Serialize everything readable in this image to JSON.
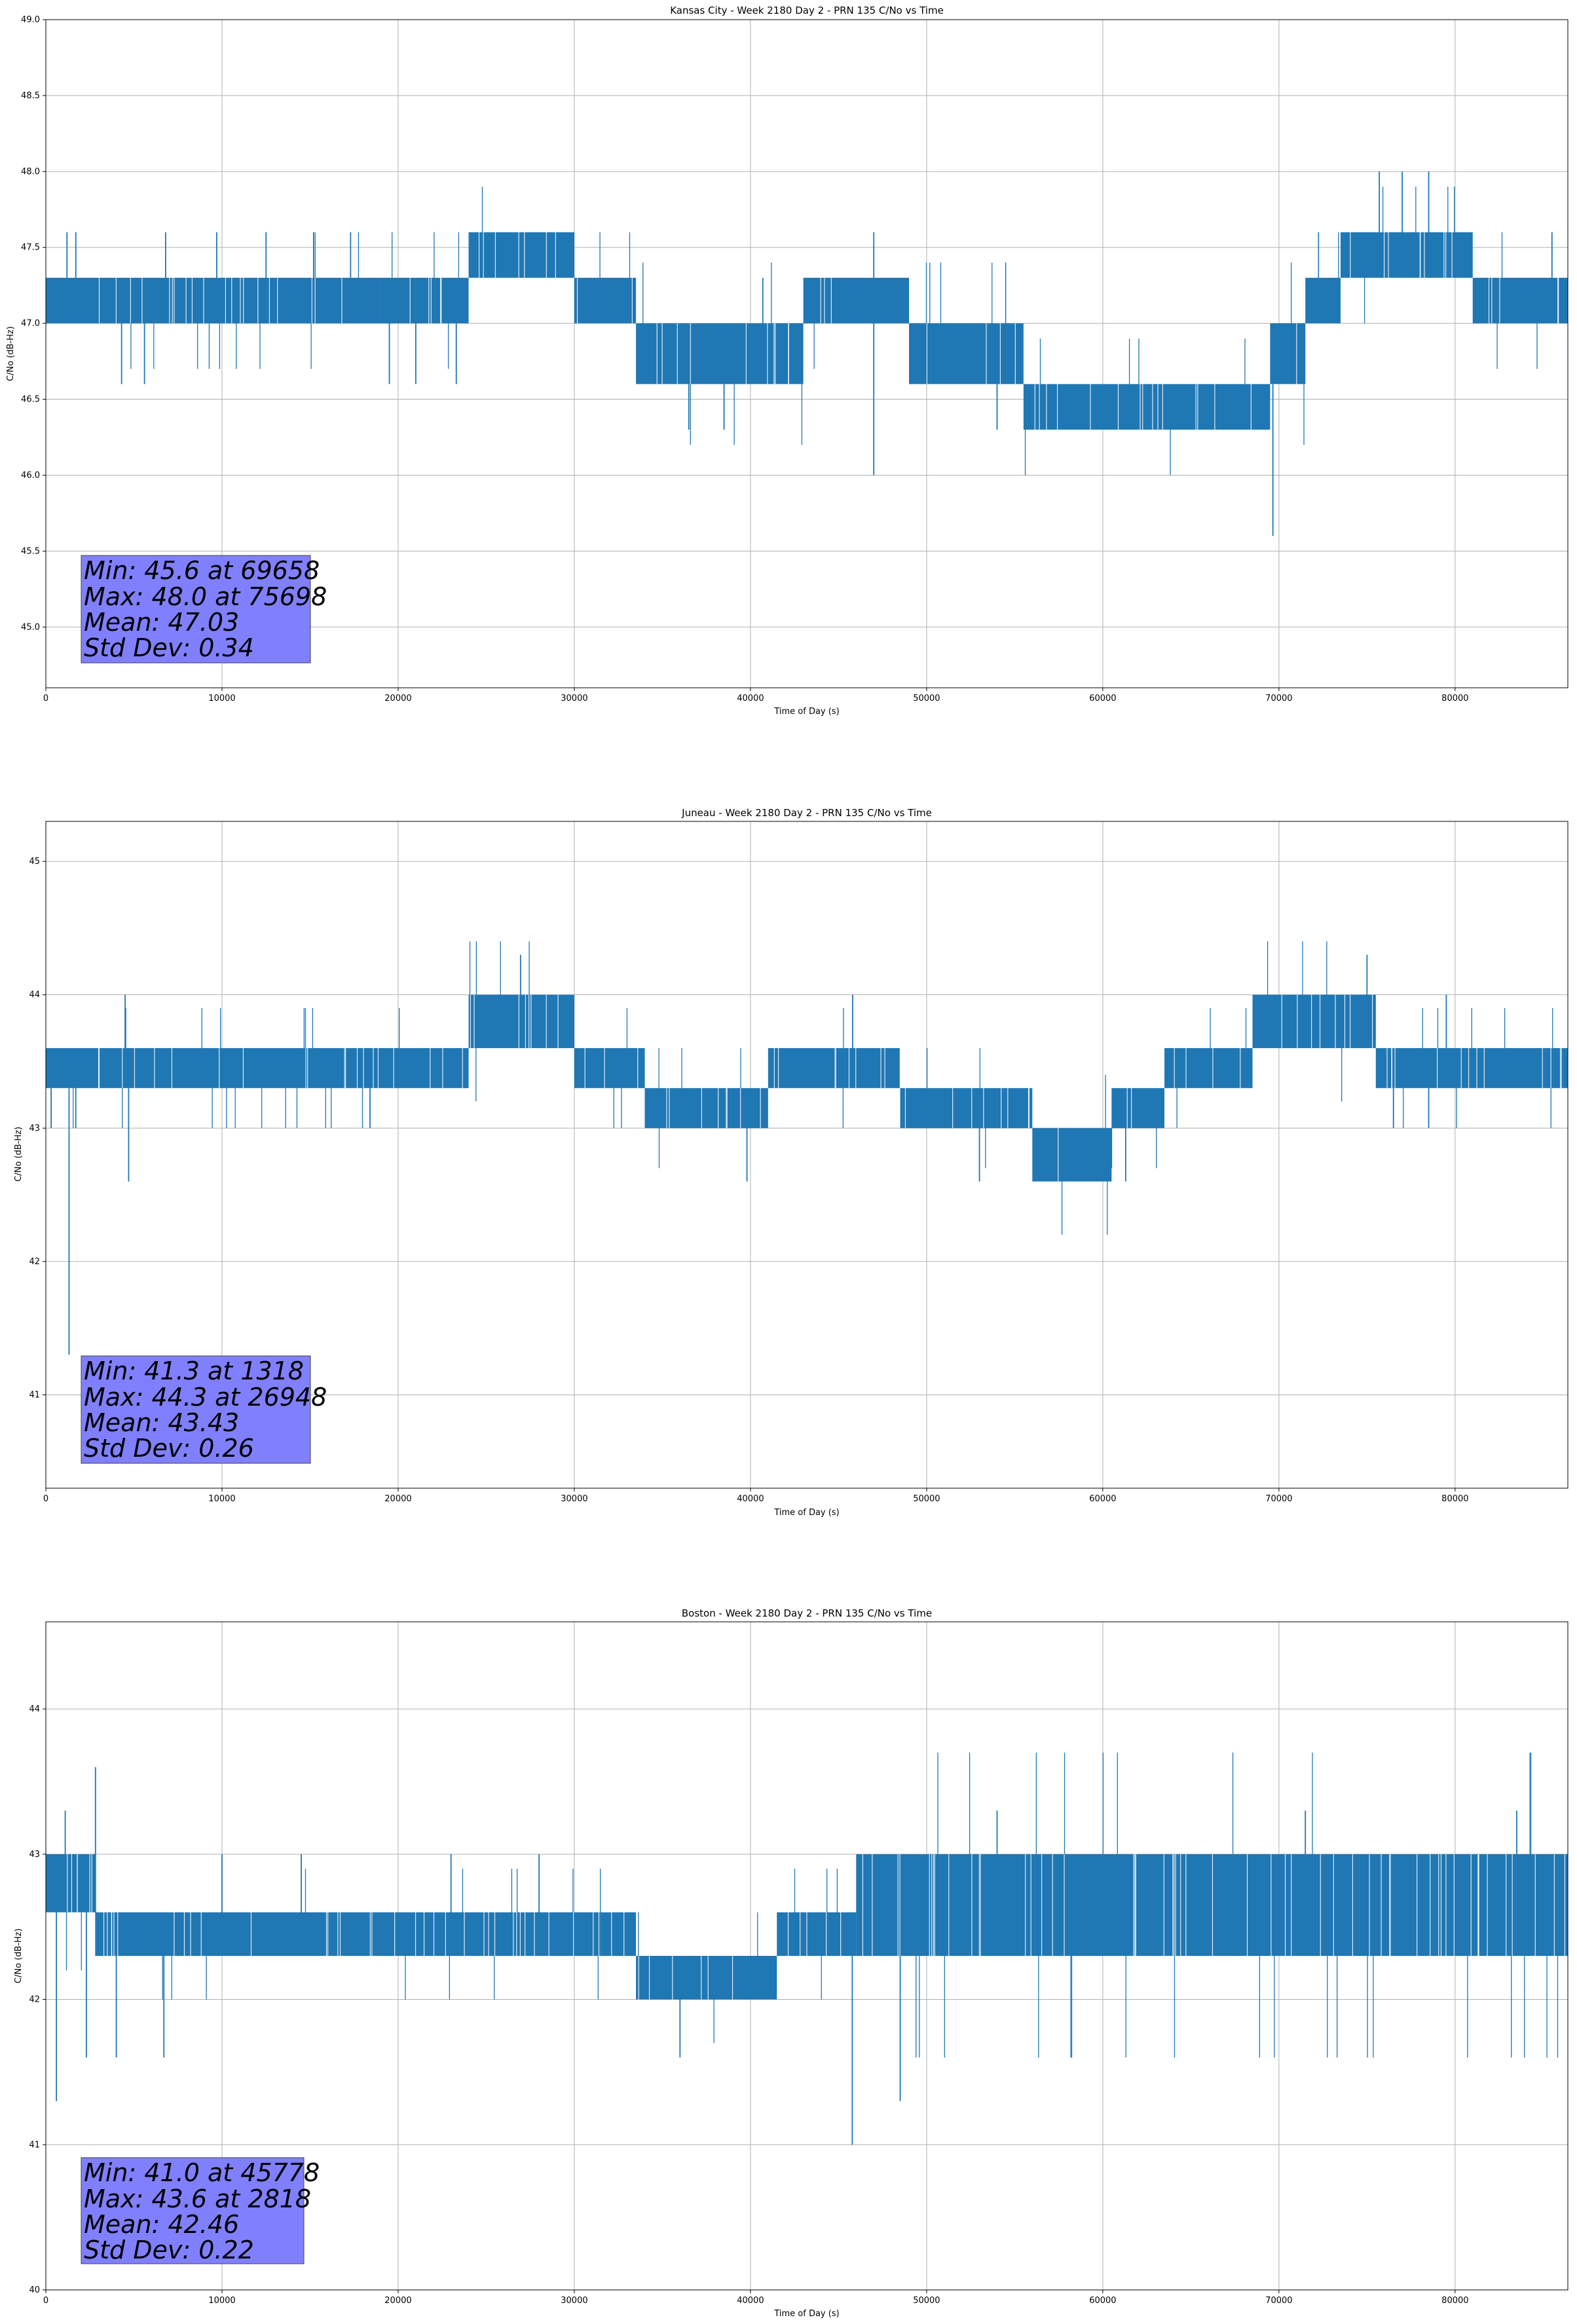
{
  "chart_data": [
    {
      "type": "line",
      "title": "Kansas City - Week 2180 Day 2 - PRN 135 C/No vs Time",
      "xlabel": "Time of Day (s)",
      "ylabel": "C/No (dB-Hz)",
      "xlim": [
        0,
        86400
      ],
      "ylim": [
        44.6,
        49.0
      ],
      "xticks": [
        0,
        10000,
        20000,
        30000,
        40000,
        50000,
        60000,
        70000,
        80000
      ],
      "xtick_labels": [
        "0",
        "10000",
        "20000",
        "30000",
        "40000",
        "50000",
        "60000",
        "70000",
        "80000"
      ],
      "yticks": [
        45.0,
        45.5,
        46.0,
        46.5,
        47.0,
        47.5,
        48.0,
        48.5,
        49.0
      ],
      "ytick_labels": [
        "45.0",
        "45.5",
        "46.0",
        "46.5",
        "47.0",
        "47.5",
        "48.0",
        "48.5",
        "49.0"
      ],
      "grid": true,
      "color": "#1f77b4",
      "stats_box_color": "#8080ff",
      "stats": [
        "Min: 45.6 at 69658",
        "Max: 48.0 at 75698",
        "Mean: 47.03",
        "Std Dev: 0.34"
      ],
      "band_series": [
        {
          "x_start": 0,
          "x_end": 19000,
          "low": 47.0,
          "high": 47.3
        },
        {
          "x_start": 19000,
          "x_end": 24000,
          "low": 47.0,
          "high": 47.3
        },
        {
          "x_start": 24000,
          "x_end": 30000,
          "low": 47.3,
          "high": 47.6
        },
        {
          "x_start": 30000,
          "x_end": 33500,
          "low": 47.0,
          "high": 47.3
        },
        {
          "x_start": 33500,
          "x_end": 43000,
          "low": 46.6,
          "high": 47.0
        },
        {
          "x_start": 43000,
          "x_end": 49000,
          "low": 47.0,
          "high": 47.3
        },
        {
          "x_start": 49000,
          "x_end": 55500,
          "low": 46.6,
          "high": 47.0
        },
        {
          "x_start": 55500,
          "x_end": 69500,
          "low": 46.3,
          "high": 46.6
        },
        {
          "x_start": 69500,
          "x_end": 71500,
          "low": 46.6,
          "high": 47.0
        },
        {
          "x_start": 71500,
          "x_end": 73500,
          "low": 47.0,
          "high": 47.3
        },
        {
          "x_start": 73500,
          "x_end": 81000,
          "low": 47.3,
          "high": 47.6
        },
        {
          "x_start": 81000,
          "x_end": 86400,
          "low": 47.0,
          "high": 47.3
        }
      ],
      "spikes": [
        {
          "x": 1200,
          "y": 47.6
        },
        {
          "x": 1700,
          "y": 47.6
        },
        {
          "x": 4300,
          "y": 46.6
        },
        {
          "x": 5600,
          "y": 46.6
        },
        {
          "x": 6800,
          "y": 47.6
        },
        {
          "x": 9700,
          "y": 47.6
        },
        {
          "x": 12500,
          "y": 47.6
        },
        {
          "x": 15200,
          "y": 47.6
        },
        {
          "x": 17300,
          "y": 47.6
        },
        {
          "x": 19500,
          "y": 46.6
        },
        {
          "x": 21000,
          "y": 46.6
        },
        {
          "x": 23300,
          "y": 46.6
        },
        {
          "x": 36500,
          "y": 46.3
        },
        {
          "x": 38500,
          "y": 46.3
        },
        {
          "x": 40700,
          "y": 47.3
        },
        {
          "x": 47000,
          "y": 47.6
        },
        {
          "x": 47000,
          "y": 46.0
        },
        {
          "x": 54000,
          "y": 46.3
        },
        {
          "x": 69658,
          "y": 45.6
        },
        {
          "x": 75698,
          "y": 48.0
        },
        {
          "x": 77000,
          "y": 48.0
        },
        {
          "x": 78500,
          "y": 48.0
        },
        {
          "x": 85500,
          "y": 47.6
        }
      ]
    },
    {
      "type": "line",
      "title": "Juneau - Week 2180 Day 2 - PRN 135 C/No vs Time",
      "xlabel": "Time of Day (s)",
      "ylabel": "C/No (dB-Hz)",
      "xlim": [
        0,
        86400
      ],
      "ylim": [
        40.3,
        45.3
      ],
      "xticks": [
        0,
        10000,
        20000,
        30000,
        40000,
        50000,
        60000,
        70000,
        80000
      ],
      "xtick_labels": [
        "0",
        "10000",
        "20000",
        "30000",
        "40000",
        "50000",
        "60000",
        "70000",
        "80000"
      ],
      "yticks": [
        41,
        42,
        43,
        44,
        45
      ],
      "ytick_labels": [
        "41",
        "42",
        "43",
        "44",
        "45"
      ],
      "grid": true,
      "color": "#1f77b4",
      "stats_box_color": "#8080ff",
      "stats": [
        "Min: 41.3 at 1318",
        "Max: 44.3 at 26948",
        "Mean: 43.43",
        "Std Dev: 0.26"
      ],
      "band_series": [
        {
          "x_start": 0,
          "x_end": 4500,
          "low": 43.3,
          "high": 43.6
        },
        {
          "x_start": 4500,
          "x_end": 24000,
          "low": 43.3,
          "high": 43.6
        },
        {
          "x_start": 24000,
          "x_end": 30000,
          "low": 43.6,
          "high": 44.0
        },
        {
          "x_start": 30000,
          "x_end": 34000,
          "low": 43.3,
          "high": 43.6
        },
        {
          "x_start": 34000,
          "x_end": 41000,
          "low": 43.0,
          "high": 43.3
        },
        {
          "x_start": 41000,
          "x_end": 48500,
          "low": 43.3,
          "high": 43.6
        },
        {
          "x_start": 48500,
          "x_end": 56000,
          "low": 43.0,
          "high": 43.3
        },
        {
          "x_start": 56000,
          "x_end": 60500,
          "low": 42.6,
          "high": 43.0
        },
        {
          "x_start": 60500,
          "x_end": 63500,
          "low": 43.0,
          "high": 43.3
        },
        {
          "x_start": 63500,
          "x_end": 68500,
          "low": 43.3,
          "high": 43.6
        },
        {
          "x_start": 68500,
          "x_end": 75500,
          "low": 43.6,
          "high": 44.0
        },
        {
          "x_start": 75500,
          "x_end": 86400,
          "low": 43.3,
          "high": 43.6
        }
      ],
      "spikes": [
        {
          "x": 300,
          "y": 43.0
        },
        {
          "x": 1318,
          "y": 41.3
        },
        {
          "x": 1700,
          "y": 43.0
        },
        {
          "x": 4700,
          "y": 42.6
        },
        {
          "x": 4500,
          "y": 44.0
        },
        {
          "x": 18400,
          "y": 43.0
        },
        {
          "x": 26948,
          "y": 44.3
        },
        {
          "x": 39800,
          "y": 42.6
        },
        {
          "x": 45800,
          "y": 44.0
        },
        {
          "x": 53000,
          "y": 42.6
        },
        {
          "x": 61300,
          "y": 42.6
        },
        {
          "x": 75000,
          "y": 44.3
        },
        {
          "x": 76500,
          "y": 43.0
        },
        {
          "x": 78500,
          "y": 43.0
        },
        {
          "x": 79500,
          "y": 44.0
        }
      ]
    },
    {
      "type": "line",
      "title": "Boston - Week 2180 Day 2 - PRN 135 C/No vs Time",
      "xlabel": "Time of Day (s)",
      "ylabel": "C/No (dB-Hz)",
      "xlim": [
        0,
        86400
      ],
      "ylim": [
        40.0,
        44.6
      ],
      "xticks": [
        0,
        10000,
        20000,
        30000,
        40000,
        50000,
        60000,
        70000,
        80000
      ],
      "xtick_labels": [
        "0",
        "10000",
        "20000",
        "30000",
        "40000",
        "50000",
        "60000",
        "70000",
        "80000"
      ],
      "yticks": [
        40,
        41,
        42,
        43,
        44
      ],
      "ytick_labels": [
        "40",
        "41",
        "42",
        "43",
        "44"
      ],
      "grid": true,
      "color": "#1f77b4",
      "stats_box_color": "#8080ff",
      "stats": [
        "Min: 41.0 at 45778",
        "Max: 43.6 at 2818",
        "Mean: 42.46",
        "Std Dev: 0.22"
      ],
      "band_series": [
        {
          "x_start": 0,
          "x_end": 2800,
          "low": 42.6,
          "high": 43.0
        },
        {
          "x_start": 2800,
          "x_end": 31500,
          "low": 42.3,
          "high": 42.6
        },
        {
          "x_start": 31500,
          "x_end": 33500,
          "low": 42.3,
          "high": 42.6
        },
        {
          "x_start": 33500,
          "x_end": 41500,
          "low": 42.0,
          "high": 42.3
        },
        {
          "x_start": 41500,
          "x_end": 46000,
          "low": 42.3,
          "high": 42.6
        },
        {
          "x_start": 46000,
          "x_end": 86400,
          "low": 42.3,
          "high": 43.0
        }
      ],
      "spikes": [
        {
          "x": 600,
          "y": 41.3
        },
        {
          "x": 1100,
          "y": 43.3
        },
        {
          "x": 2300,
          "y": 41.6
        },
        {
          "x": 2818,
          "y": 43.6
        },
        {
          "x": 4000,
          "y": 41.6
        },
        {
          "x": 6700,
          "y": 41.6
        },
        {
          "x": 10000,
          "y": 43.0
        },
        {
          "x": 14500,
          "y": 43.0
        },
        {
          "x": 23000,
          "y": 43.0
        },
        {
          "x": 28000,
          "y": 43.0
        },
        {
          "x": 36000,
          "y": 41.6
        },
        {
          "x": 45778,
          "y": 41.0
        },
        {
          "x": 48500,
          "y": 41.3
        },
        {
          "x": 54000,
          "y": 43.3
        },
        {
          "x": 71500,
          "y": 43.3
        },
        {
          "x": 83500,
          "y": 43.3
        }
      ]
    }
  ]
}
